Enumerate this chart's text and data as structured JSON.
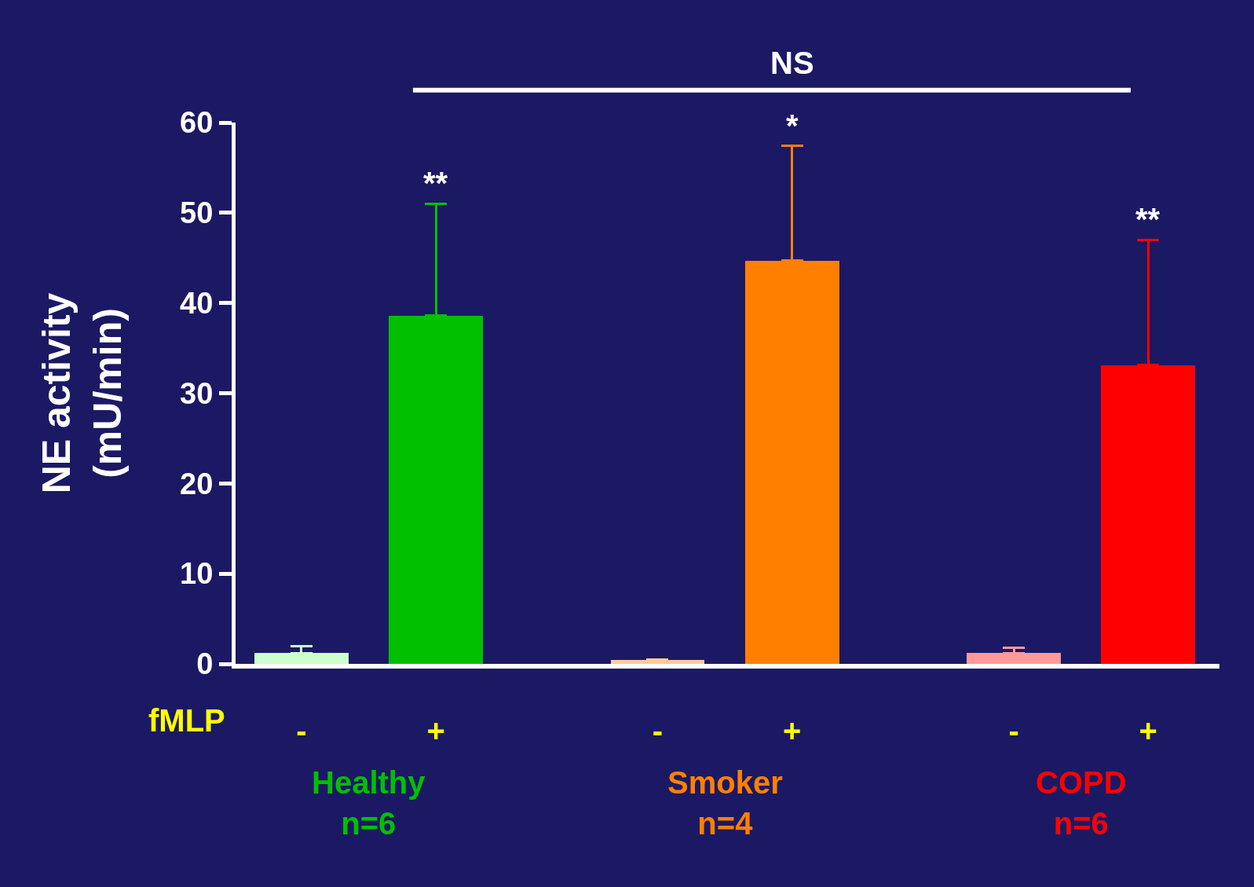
{
  "chart_data": {
    "type": "bar",
    "ylabel": "NE activity\n(mU/min)",
    "categories": [
      "-",
      "+",
      "-",
      "+",
      "-",
      "+"
    ],
    "values": [
      1.2,
      38.6,
      0.4,
      44.7,
      1.2,
      33.1
    ],
    "colors": [
      "#ccffcc",
      "#00c000",
      "#ffcc99",
      "#ff8000",
      "#ff9999",
      "#ff0000"
    ],
    "errors": [
      [
        1.2,
        2.0
      ],
      [
        38.6,
        51.0
      ],
      [
        0.4,
        0.5
      ],
      [
        44.7,
        57.4
      ],
      [
        1.2,
        1.8
      ],
      [
        33.1,
        47.0
      ]
    ],
    "ylim": [
      0,
      60
    ],
    "yticks": [
      0,
      10,
      20,
      30,
      40,
      50,
      60
    ],
    "grid": false,
    "annotations": [
      "NS",
      "**",
      "*",
      "**",
      "fMLP",
      "Healthy\nn=6",
      "Smoker\nn=4",
      "COPD\nn=6"
    ]
  }
}
